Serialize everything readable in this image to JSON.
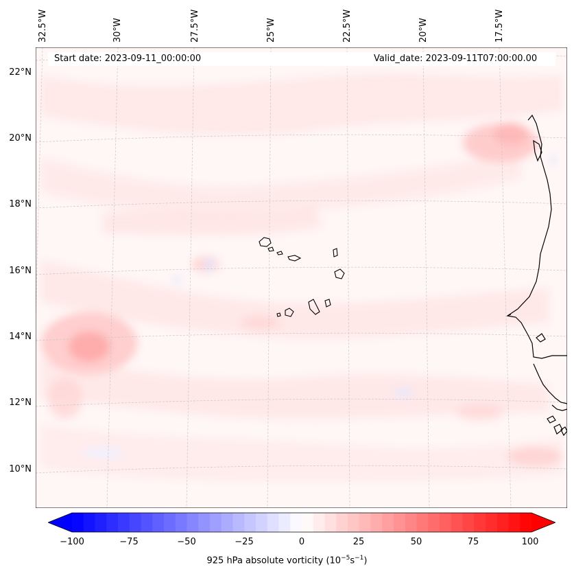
{
  "start_label": "Start date: 2023-09-11_00:00:00",
  "valid_label": "Valid_date: 2023-09-11T07:00:00.00",
  "lon_labels": [
    "32.5°W",
    "30°W",
    "27.5°W",
    "25°W",
    "22.5°W",
    "20°W",
    "17.5°W"
  ],
  "lat_labels": [
    "22°N",
    "20°N",
    "18°N",
    "16°N",
    "14°N",
    "12°N",
    "10°N"
  ],
  "colorbar": {
    "ticks": [
      "−100",
      "−75",
      "−50",
      "−25",
      "0",
      "25",
      "50",
      "75",
      "100"
    ],
    "title": "925 hPa absolute vorticity (10",
    "title_sup1": "−5",
    "title_mid": "s",
    "title_sup2": "−1",
    "title_end": ")",
    "min": -100,
    "max": 100,
    "step": 5,
    "neg_color": "#0000ff",
    "pos_color": "#ff0000"
  },
  "colors": {
    "coastline": "#000000",
    "gridline": "#c8c8c8",
    "field_background": "#fff6f6"
  }
}
